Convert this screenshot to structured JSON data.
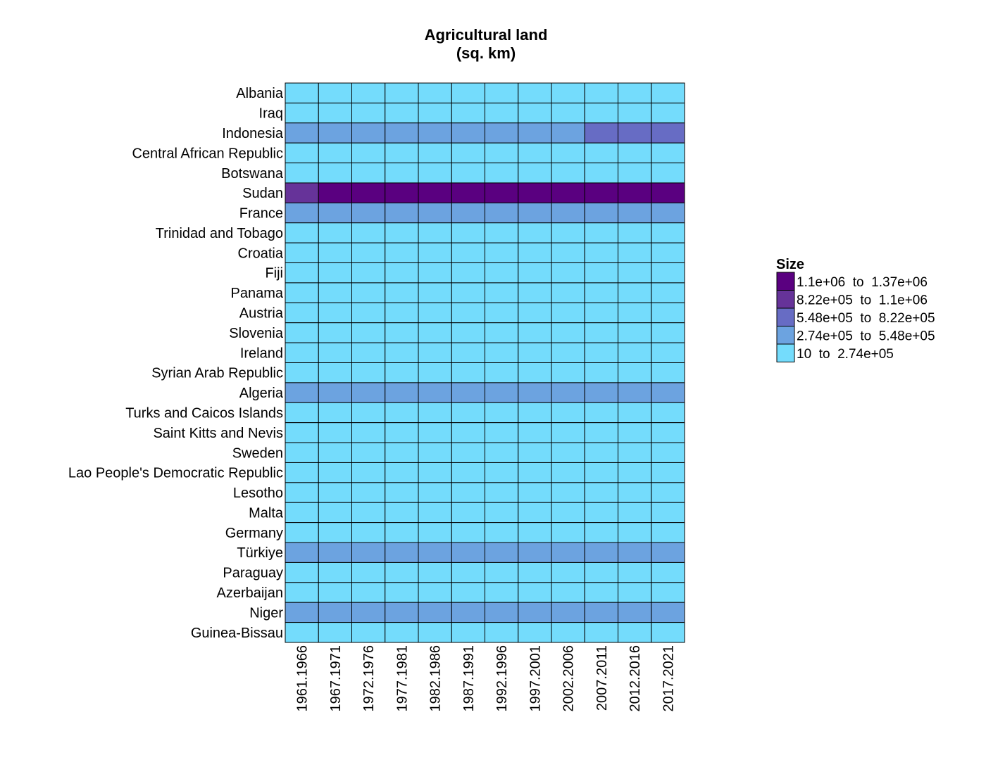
{
  "chart_data": {
    "type": "heatmap",
    "title": [
      "Agricultural land",
      "(sq. km)"
    ],
    "xlabel": "",
    "ylabel": "",
    "columns": [
      "1961.1966",
      "1967.1971",
      "1972.1976",
      "1977.1981",
      "1982.1986",
      "1987.1991",
      "1992.1996",
      "1997.2001",
      "2002.2006",
      "2007.2011",
      "2012.2016",
      "2017.2021"
    ],
    "rows": [
      "Albania",
      "Iraq",
      "Indonesia",
      "Central African Republic",
      "Botswana",
      "Sudan",
      "France",
      "Trinidad and Tobago",
      "Croatia",
      "Fiji",
      "Panama",
      "Austria",
      "Slovenia",
      "Ireland",
      "Syrian Arab Republic",
      "Algeria",
      "Turks and Caicos Islands",
      "Saint Kitts and Nevis",
      "Sweden",
      "Lao People's Democratic Republic",
      "Lesotho",
      "Malta",
      "Germany",
      "Türkiye",
      "Paraguay",
      "Azerbaijan",
      "Niger",
      "Guinea-Bissau"
    ],
    "bin_index": [
      [
        0,
        0,
        0,
        0,
        0,
        0,
        0,
        0,
        0,
        0,
        0,
        0
      ],
      [
        0,
        0,
        0,
        0,
        0,
        0,
        0,
        0,
        0,
        0,
        0,
        0
      ],
      [
        1,
        1,
        1,
        1,
        1,
        1,
        1,
        1,
        1,
        2,
        2,
        2
      ],
      [
        0,
        0,
        0,
        0,
        0,
        0,
        0,
        0,
        0,
        0,
        0,
        0
      ],
      [
        0,
        0,
        0,
        0,
        0,
        0,
        0,
        0,
        0,
        0,
        0,
        0
      ],
      [
        3,
        4,
        4,
        4,
        4,
        4,
        4,
        4,
        4,
        4,
        4,
        4
      ],
      [
        1,
        1,
        1,
        1,
        1,
        1,
        1,
        1,
        1,
        1,
        1,
        1
      ],
      [
        0,
        0,
        0,
        0,
        0,
        0,
        0,
        0,
        0,
        0,
        0,
        0
      ],
      [
        0,
        0,
        0,
        0,
        0,
        0,
        0,
        0,
        0,
        0,
        0,
        0
      ],
      [
        0,
        0,
        0,
        0,
        0,
        0,
        0,
        0,
        0,
        0,
        0,
        0
      ],
      [
        0,
        0,
        0,
        0,
        0,
        0,
        0,
        0,
        0,
        0,
        0,
        0
      ],
      [
        0,
        0,
        0,
        0,
        0,
        0,
        0,
        0,
        0,
        0,
        0,
        0
      ],
      [
        0,
        0,
        0,
        0,
        0,
        0,
        0,
        0,
        0,
        0,
        0,
        0
      ],
      [
        0,
        0,
        0,
        0,
        0,
        0,
        0,
        0,
        0,
        0,
        0,
        0
      ],
      [
        0,
        0,
        0,
        0,
        0,
        0,
        0,
        0,
        0,
        0,
        0,
        0
      ],
      [
        1,
        1,
        1,
        1,
        1,
        1,
        1,
        1,
        1,
        1,
        1,
        1
      ],
      [
        0,
        0,
        0,
        0,
        0,
        0,
        0,
        0,
        0,
        0,
        0,
        0
      ],
      [
        0,
        0,
        0,
        0,
        0,
        0,
        0,
        0,
        0,
        0,
        0,
        0
      ],
      [
        0,
        0,
        0,
        0,
        0,
        0,
        0,
        0,
        0,
        0,
        0,
        0
      ],
      [
        0,
        0,
        0,
        0,
        0,
        0,
        0,
        0,
        0,
        0,
        0,
        0
      ],
      [
        0,
        0,
        0,
        0,
        0,
        0,
        0,
        0,
        0,
        0,
        0,
        0
      ],
      [
        0,
        0,
        0,
        0,
        0,
        0,
        0,
        0,
        0,
        0,
        0,
        0
      ],
      [
        0,
        0,
        0,
        0,
        0,
        0,
        0,
        0,
        0,
        0,
        0,
        0
      ],
      [
        1,
        1,
        1,
        1,
        1,
        1,
        1,
        1,
        1,
        1,
        1,
        1
      ],
      [
        0,
        0,
        0,
        0,
        0,
        0,
        0,
        0,
        0,
        0,
        0,
        0
      ],
      [
        0,
        0,
        0,
        0,
        0,
        0,
        0,
        0,
        0,
        0,
        0,
        0
      ],
      [
        1,
        1,
        1,
        1,
        1,
        1,
        1,
        1,
        1,
        1,
        1,
        1
      ],
      [
        0,
        0,
        0,
        0,
        0,
        0,
        0,
        0,
        0,
        0,
        0,
        0
      ]
    ],
    "legend": {
      "title": "Size",
      "placement": "right",
      "bins": [
        {
          "label": "10  to  2.74e+05",
          "color": "#74dcfc"
        },
        {
          "label": "2.74e+05  to  5.48e+05",
          "color": "#6ca3e0"
        },
        {
          "label": "5.48e+05  to  8.22e+05",
          "color": "#676cc4"
        },
        {
          "label": "8.22e+05  to  1.1e+06",
          "color": "#663399"
        },
        {
          "label": "1.1e+06  to  1.37e+06",
          "color": "#5a0080"
        }
      ]
    },
    "grid": false
  }
}
